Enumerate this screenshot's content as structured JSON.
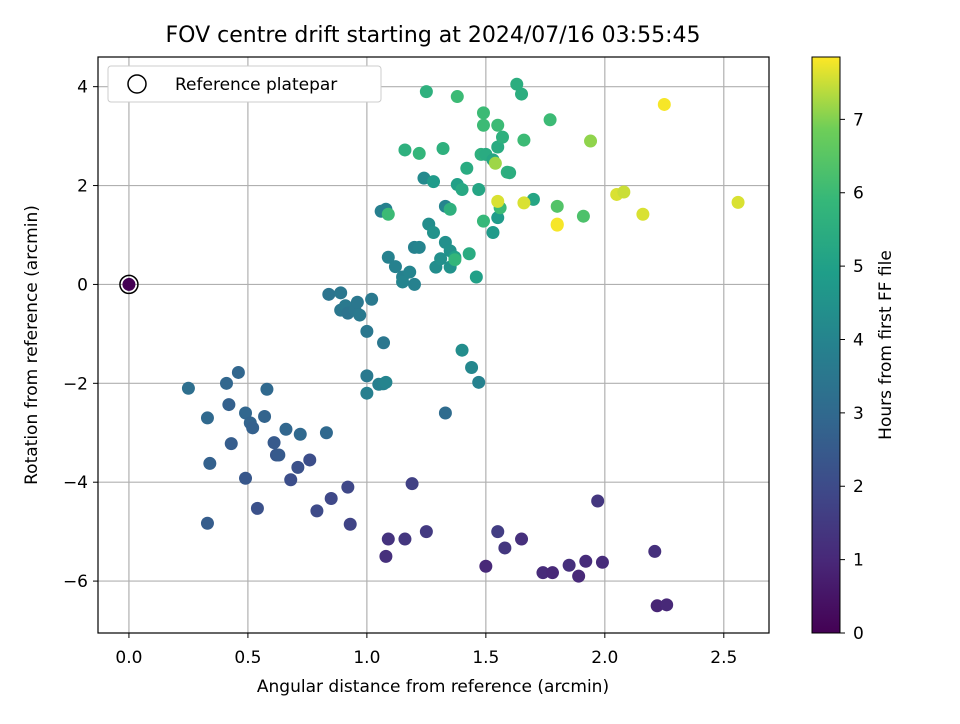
{
  "chart_data": {
    "type": "scatter",
    "title": "FOV centre drift starting at 2024/07/16 03:55:45",
    "xlabel": "Angular distance from reference (arcmin)",
    "ylabel": "Rotation from reference (arcmin)",
    "xlim": [
      -0.13,
      2.69
    ],
    "ylim": [
      -7.05,
      4.6
    ],
    "xticks": [
      "0.0",
      "0.5",
      "1.0",
      "1.5",
      "2.0",
      "2.5"
    ],
    "yticks": [
      "−6",
      "−4",
      "−2",
      "0",
      "2",
      "4"
    ],
    "grid": true,
    "legend": {
      "position": "top-left",
      "entries": [
        "Reference platepar"
      ]
    },
    "colorbar": {
      "label": "Hours from first FF file",
      "colormap": "viridis",
      "range": [
        0,
        7.85
      ],
      "ticks": [
        "0",
        "1",
        "2",
        "3",
        "4",
        "5",
        "6",
        "7"
      ]
    },
    "reference_point": {
      "x": 0.0,
      "y": 0.0
    },
    "points": [
      [
        0.0,
        0.0,
        0.0
      ],
      [
        1.08,
        -5.5,
        1.2
      ],
      [
        1.09,
        -5.15,
        1.3
      ],
      [
        1.16,
        -5.15,
        1.4
      ],
      [
        1.25,
        -5.0,
        1.5
      ],
      [
        1.5,
        -5.7,
        1.0
      ],
      [
        1.55,
        -5.0,
        1.6
      ],
      [
        1.58,
        -5.33,
        1.4
      ],
      [
        1.65,
        -5.15,
        1.2
      ],
      [
        1.74,
        -5.83,
        1.1
      ],
      [
        1.78,
        -5.83,
        1.0
      ],
      [
        1.85,
        -5.68,
        1.2
      ],
      [
        1.89,
        -5.9,
        1.0
      ],
      [
        1.92,
        -5.6,
        1.1
      ],
      [
        1.97,
        -4.38,
        1.4
      ],
      [
        1.99,
        -5.62,
        1.1
      ],
      [
        2.21,
        -5.4,
        1.2
      ],
      [
        2.22,
        -6.5,
        0.9
      ],
      [
        2.26,
        -6.48,
        1.0
      ],
      [
        1.19,
        -4.03,
        1.7
      ],
      [
        0.93,
        -4.85,
        1.8
      ],
      [
        0.92,
        -4.1,
        1.9
      ],
      [
        0.85,
        -4.33,
        1.9
      ],
      [
        0.79,
        -4.58,
        2.0
      ],
      [
        0.76,
        -3.55,
        2.1
      ],
      [
        0.71,
        -3.7,
        2.2
      ],
      [
        0.68,
        -3.95,
        2.1
      ],
      [
        0.62,
        -3.45,
        2.4
      ],
      [
        0.63,
        -3.45,
        2.5
      ],
      [
        0.61,
        -3.2,
        2.5
      ],
      [
        0.54,
        -4.53,
        2.2
      ],
      [
        0.49,
        -3.92,
        2.4
      ],
      [
        0.33,
        -4.83,
        2.6
      ],
      [
        0.34,
        -3.62,
        2.7
      ],
      [
        0.43,
        -3.22,
        2.6
      ],
      [
        0.42,
        -2.43,
        2.7
      ],
      [
        0.41,
        -2.0,
        2.9
      ],
      [
        0.46,
        -1.78,
        2.9
      ],
      [
        0.25,
        -2.1,
        3.2
      ],
      [
        0.33,
        -2.7,
        3.0
      ],
      [
        0.49,
        -2.6,
        2.9
      ],
      [
        0.51,
        -2.8,
        2.8
      ],
      [
        0.52,
        -2.9,
        2.7
      ],
      [
        0.57,
        -2.67,
        2.8
      ],
      [
        0.58,
        -2.12,
        3.0
      ],
      [
        0.66,
        -2.93,
        2.9
      ],
      [
        0.72,
        -3.03,
        3.0
      ],
      [
        0.83,
        -3.0,
        3.0
      ],
      [
        1.33,
        -2.6,
        3.1
      ],
      [
        0.84,
        -0.2,
        3.4
      ],
      [
        0.89,
        -0.17,
        3.5
      ],
      [
        0.89,
        -0.52,
        3.5
      ],
      [
        0.91,
        -0.43,
        3.6
      ],
      [
        0.92,
        -0.58,
        3.4
      ],
      [
        0.95,
        -0.52,
        3.5
      ],
      [
        0.96,
        -0.36,
        3.5
      ],
      [
        0.97,
        -0.62,
        3.6
      ],
      [
        1.0,
        -0.95,
        3.5
      ],
      [
        1.02,
        -0.3,
        3.6
      ],
      [
        1.07,
        -1.18,
        3.5
      ],
      [
        1.0,
        -1.85,
        3.6
      ],
      [
        1.0,
        -2.2,
        3.8
      ],
      [
        1.05,
        -2.02,
        3.8
      ],
      [
        1.07,
        -2.01,
        3.9
      ],
      [
        1.08,
        -1.98,
        4.0
      ],
      [
        1.47,
        -1.98,
        3.9
      ],
      [
        1.44,
        -1.68,
        4.1
      ],
      [
        1.4,
        -1.33,
        4.3
      ],
      [
        1.09,
        0.55,
        3.9
      ],
      [
        1.12,
        0.36,
        3.9
      ],
      [
        1.15,
        0.15,
        3.9
      ],
      [
        1.15,
        0.05,
        4.0
      ],
      [
        1.18,
        0.25,
        4.0
      ],
      [
        1.2,
        0.0,
        3.9
      ],
      [
        1.2,
        0.75,
        3.9
      ],
      [
        1.22,
        0.75,
        4.0
      ],
      [
        1.06,
        1.48,
        3.8
      ],
      [
        1.08,
        1.52,
        3.9
      ],
      [
        1.24,
        2.15,
        4.2
      ],
      [
        1.26,
        1.22,
        4.3
      ],
      [
        1.29,
        0.35,
        4.3
      ],
      [
        1.31,
        0.52,
        4.4
      ],
      [
        1.33,
        0.85,
        4.4
      ],
      [
        1.33,
        1.58,
        4.0
      ],
      [
        1.35,
        0.68,
        4.5
      ],
      [
        1.35,
        0.35,
        4.5
      ],
      [
        1.28,
        1.05,
        4.5
      ],
      [
        1.28,
        2.08,
        4.8
      ],
      [
        1.37,
        0.55,
        5.0
      ],
      [
        1.38,
        2.02,
        5.0
      ],
      [
        1.4,
        1.92,
        5.3
      ],
      [
        1.42,
        2.35,
        5.4
      ],
      [
        1.43,
        0.62,
        5.4
      ],
      [
        1.46,
        0.15,
        5.0
      ],
      [
        1.47,
        1.92,
        5.2
      ],
      [
        1.48,
        2.63,
        5.6
      ],
      [
        1.5,
        2.63,
        5.4
      ],
      [
        1.53,
        2.52,
        5.2
      ],
      [
        1.53,
        1.05,
        4.8
      ],
      [
        1.55,
        1.35,
        4.8
      ],
      [
        1.55,
        2.78,
        5.4
      ],
      [
        1.57,
        2.98,
        5.6
      ],
      [
        1.59,
        2.27,
        5.6
      ],
      [
        1.6,
        2.26,
        5.5
      ],
      [
        1.63,
        4.05,
        5.5
      ],
      [
        1.65,
        3.85,
        5.5
      ],
      [
        1.7,
        1.72,
        5.2
      ],
      [
        1.16,
        2.72,
        5.6
      ],
      [
        1.22,
        2.65,
        5.8
      ],
      [
        1.25,
        3.9,
        5.6
      ],
      [
        1.32,
        2.75,
        5.6
      ],
      [
        1.35,
        1.52,
        5.6
      ],
      [
        1.37,
        0.5,
        5.8
      ],
      [
        1.38,
        3.8,
        6.0
      ],
      [
        1.49,
        3.47,
        6.0
      ],
      [
        1.49,
        3.22,
        6.0
      ],
      [
        1.49,
        1.28,
        5.9
      ],
      [
        1.55,
        3.22,
        6.0
      ],
      [
        1.56,
        1.55,
        6.0
      ],
      [
        1.66,
        2.92,
        6.0
      ],
      [
        1.77,
        3.33,
        6.0
      ],
      [
        1.09,
        1.42,
        6.0
      ],
      [
        1.8,
        1.58,
        6.4
      ],
      [
        1.91,
        1.38,
        6.3
      ],
      [
        1.54,
        2.45,
        7.2
      ],
      [
        1.55,
        1.68,
        7.6
      ],
      [
        1.66,
        1.65,
        7.6
      ],
      [
        1.8,
        1.2,
        7.8
      ],
      [
        1.8,
        1.22,
        7.8
      ],
      [
        1.94,
        2.9,
        7.1
      ],
      [
        2.05,
        1.82,
        7.6
      ],
      [
        2.08,
        1.87,
        7.5
      ],
      [
        2.16,
        1.42,
        7.6
      ],
      [
        2.25,
        3.64,
        7.8
      ],
      [
        2.56,
        1.66,
        7.6
      ]
    ]
  }
}
